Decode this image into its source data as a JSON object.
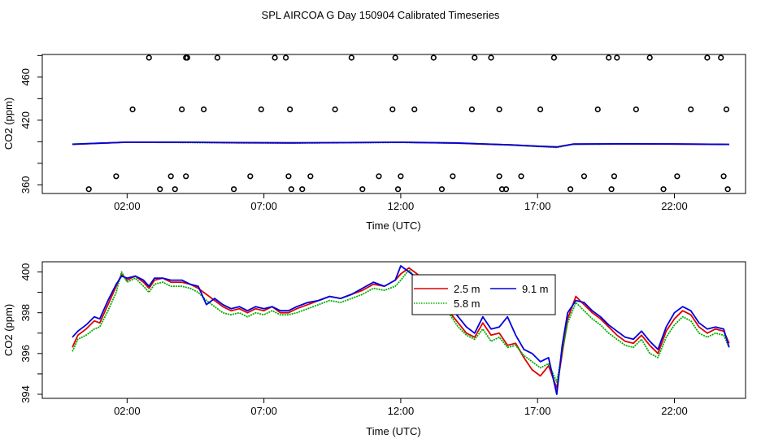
{
  "title": "SPL AIRCOA G  Day 150904  Calibrated Timeseries",
  "colors": {
    "s25": "#e00000",
    "s58": "#00b000",
    "s91": "#0000e0",
    "points": "#000000",
    "frame": "#000000"
  },
  "chart_data": [
    {
      "type": "scatter+line",
      "xlabel": "Time (UTC)",
      "ylabel": "CO2 (ppm)",
      "xlim": [
        -1.1,
        24.6
      ],
      "ylim": [
        352,
        481
      ],
      "xticks": [
        2,
        7,
        12,
        17,
        22
      ],
      "xtick_labels": [
        "02:00",
        "07:00",
        "12:00",
        "17:00",
        "22:00"
      ],
      "yticks": [
        360,
        380,
        400,
        420,
        440,
        460,
        480
      ],
      "ytick_labels": [
        "360",
        "",
        "",
        "420",
        "",
        "460",
        ""
      ],
      "cal_points": {
        "x": [
          0.6,
          1.6,
          2.2,
          2.8,
          3.2,
          3.6,
          3.75,
          4.15,
          4.0,
          4.15,
          4.2,
          4.8,
          5.3,
          5.9,
          6.5,
          6.9,
          7.4,
          7.8,
          7.9,
          7.95,
          8.0,
          8.4,
          8.7,
          9.6,
          10.2,
          10.6,
          11.2,
          11.7,
          11.8,
          11.9,
          12.0,
          12.5,
          13.2,
          13.5,
          13.9,
          14.6,
          14.7,
          15.3,
          15.6,
          15.6,
          15.7,
          15.85,
          16.4,
          17.1,
          17.6,
          18.2,
          18.7,
          19.2,
          19.6,
          19.7,
          19.8,
          19.9,
          20.6,
          21.1,
          21.6,
          22.1,
          22.6,
          23.2,
          23.7,
          23.8,
          23.9,
          23.95
        ],
        "y": [
          356,
          368,
          430,
          478,
          356,
          368,
          356,
          368,
          430,
          478,
          478,
          430,
          478,
          356,
          368,
          430,
          478,
          478,
          368,
          430,
          356,
          356,
          368,
          430,
          478,
          356,
          368,
          430,
          478,
          356,
          368,
          430,
          478,
          356,
          368,
          430,
          478,
          478,
          368,
          430,
          356,
          356,
          368,
          430,
          478,
          356,
          368,
          430,
          478,
          356,
          368,
          478,
          430,
          478,
          356,
          368,
          430,
          478,
          478,
          368,
          430,
          356
        ]
      },
      "series": [
        {
          "name": "",
          "color_key": "s58",
          "x": [
            0,
            2,
            4,
            6,
            8,
            10,
            12,
            14,
            15,
            16,
            17,
            17.7,
            18.3,
            20,
            22,
            24
          ],
          "y": [
            397.8,
            399.5,
            399.3,
            398.9,
            398.8,
            399.1,
            399.4,
            398.7,
            397.8,
            396.9,
            395.6,
            394.8,
            397.6,
            397.8,
            397.7,
            397.4
          ]
        },
        {
          "name": "",
          "color_key": "s25",
          "x": [
            0,
            2,
            4,
            6,
            8,
            10,
            12,
            14,
            15,
            16,
            17,
            17.7,
            18.3,
            20,
            22,
            24
          ],
          "y": [
            397.6,
            399.6,
            399.5,
            399.1,
            398.9,
            399.2,
            399.5,
            398.8,
            397.9,
            397.1,
            395.8,
            395.0,
            397.8,
            398.0,
            397.9,
            397.6
          ]
        },
        {
          "name": "",
          "color_key": "s91",
          "x": [
            0,
            2,
            4,
            6,
            8,
            10,
            12,
            14,
            15,
            16,
            17,
            17.7,
            18.3,
            20,
            22,
            24
          ],
          "y": [
            397.7,
            399.6,
            399.6,
            399.2,
            399.0,
            399.2,
            399.5,
            398.9,
            398.0,
            397.2,
            395.9,
            395.2,
            397.9,
            398.1,
            398.0,
            397.6
          ]
        }
      ]
    },
    {
      "type": "line",
      "xlabel": "Time (UTC)",
      "ylabel": "CO2 (ppm)",
      "xlim": [
        -1.1,
        24.6
      ],
      "ylim": [
        393.8,
        400.5
      ],
      "xticks": [
        2,
        7,
        12,
        17,
        22
      ],
      "xtick_labels": [
        "02:00",
        "07:00",
        "12:00",
        "17:00",
        "22:00"
      ],
      "yticks": [
        394,
        395,
        396,
        397,
        398,
        399,
        400
      ],
      "ytick_labels": [
        "394",
        "",
        "396",
        "",
        "398",
        "",
        "400"
      ],
      "legend": {
        "entries": [
          {
            "label": "2.5 m",
            "color_key": "s25",
            "style": "line"
          },
          {
            "label": "5.8 m",
            "color_key": "s58",
            "style": "dotted"
          },
          {
            "label": "9.1 m",
            "color_key": "s91",
            "style": "line"
          }
        ],
        "placement": "top-right"
      },
      "series": [
        {
          "name": "2.5 m",
          "color_key": "s25",
          "x": [
            0,
            0.2,
            0.5,
            0.8,
            1.0,
            1.3,
            1.6,
            1.8,
            2.0,
            2.3,
            2.6,
            2.8,
            3.0,
            3.3,
            3.6,
            4.0,
            4.3,
            4.6,
            4.9,
            5.2,
            5.5,
            5.8,
            6.1,
            6.4,
            6.7,
            7.0,
            7.3,
            7.6,
            7.9,
            8.2,
            8.6,
            9.0,
            9.4,
            9.8,
            10.2,
            10.6,
            11.0,
            11.4,
            11.8,
            12.0,
            12.3,
            12.6,
            12.9,
            13.2,
            13.5,
            13.8,
            14.1,
            14.4,
            14.7,
            15.0,
            15.3,
            15.6,
            15.9,
            16.2,
            16.5,
            16.8,
            17.1,
            17.4,
            17.7,
            17.9,
            18.1,
            18.4,
            18.7,
            19.0,
            19.3,
            19.6,
            19.9,
            20.2,
            20.5,
            20.8,
            21.1,
            21.4,
            21.7,
            22.0,
            22.3,
            22.6,
            22.9,
            23.2,
            23.5,
            23.8,
            24.0
          ],
          "y": [
            396.3,
            396.9,
            397.2,
            397.6,
            397.5,
            398.4,
            399.3,
            399.9,
            399.6,
            399.8,
            399.5,
            399.2,
            399.6,
            399.7,
            399.5,
            399.5,
            399.4,
            399.2,
            398.9,
            398.6,
            398.3,
            398.1,
            398.2,
            398.0,
            398.2,
            398.1,
            398.3,
            398.0,
            398.0,
            398.2,
            398.4,
            398.6,
            398.8,
            398.7,
            398.9,
            399.1,
            399.4,
            399.3,
            399.6,
            399.9,
            400.2,
            399.9,
            399.5,
            399.0,
            398.5,
            398.0,
            397.5,
            397.0,
            396.8,
            397.5,
            396.9,
            397.0,
            396.4,
            396.5,
            395.8,
            395.2,
            394.9,
            395.4,
            394.3,
            396.0,
            397.7,
            398.8,
            398.4,
            398.0,
            397.7,
            397.3,
            396.9,
            396.6,
            396.5,
            396.9,
            396.4,
            396.0,
            397.1,
            397.7,
            398.1,
            397.9,
            397.3,
            397.0,
            397.2,
            397.1,
            396.5
          ]
        },
        {
          "name": "5.8 m",
          "color_key": "s58",
          "x": [
            0,
            0.2,
            0.5,
            0.8,
            1.0,
            1.3,
            1.6,
            1.8,
            2.0,
            2.3,
            2.6,
            2.8,
            3.0,
            3.3,
            3.6,
            4.0,
            4.3,
            4.6,
            4.9,
            5.2,
            5.5,
            5.8,
            6.1,
            6.4,
            6.7,
            7.0,
            7.3,
            7.6,
            7.9,
            8.2,
            8.6,
            9.0,
            9.4,
            9.8,
            10.2,
            10.6,
            11.0,
            11.4,
            11.8,
            12.0,
            12.3,
            12.6,
            12.9,
            13.2,
            13.5,
            13.8,
            14.1,
            14.4,
            14.7,
            15.0,
            15.3,
            15.6,
            15.9,
            16.2,
            16.5,
            16.8,
            17.1,
            17.4,
            17.7,
            17.9,
            18.1,
            18.4,
            18.7,
            19.0,
            19.3,
            19.6,
            19.9,
            20.2,
            20.5,
            20.8,
            21.1,
            21.4,
            21.7,
            22.0,
            22.3,
            22.6,
            22.9,
            23.2,
            23.5,
            23.8,
            24.0
          ],
          "y": [
            396.1,
            396.7,
            396.9,
            397.2,
            397.3,
            398.1,
            399.0,
            400.0,
            399.5,
            399.7,
            399.3,
            399.0,
            399.4,
            399.5,
            399.3,
            399.3,
            399.2,
            399.0,
            398.6,
            398.3,
            398.0,
            397.9,
            398.0,
            397.8,
            398.0,
            397.9,
            398.1,
            397.9,
            397.9,
            398.0,
            398.2,
            398.4,
            398.6,
            398.5,
            398.7,
            398.9,
            399.2,
            399.1,
            399.3,
            399.6,
            400.1,
            399.6,
            399.2,
            398.8,
            398.3,
            397.9,
            397.3,
            396.9,
            396.7,
            397.2,
            396.6,
            396.8,
            396.3,
            396.4,
            395.9,
            395.6,
            395.3,
            395.5,
            394.6,
            396.1,
            397.5,
            398.5,
            398.1,
            397.7,
            397.4,
            397.0,
            396.7,
            396.4,
            396.3,
            396.7,
            396.0,
            395.8,
            396.8,
            397.4,
            397.8,
            397.6,
            397.0,
            396.8,
            397.0,
            396.9,
            396.3
          ]
        },
        {
          "name": "9.1 m",
          "color_key": "s91",
          "x": [
            0,
            0.2,
            0.5,
            0.8,
            1.0,
            1.3,
            1.6,
            1.8,
            2.0,
            2.3,
            2.6,
            2.8,
            3.0,
            3.3,
            3.6,
            4.0,
            4.3,
            4.6,
            4.9,
            5.2,
            5.5,
            5.8,
            6.1,
            6.4,
            6.7,
            7.0,
            7.3,
            7.6,
            7.9,
            8.2,
            8.6,
            9.0,
            9.4,
            9.8,
            10.2,
            10.6,
            11.0,
            11.4,
            11.8,
            12.0,
            12.3,
            12.6,
            12.9,
            13.2,
            13.5,
            13.8,
            14.1,
            14.4,
            14.7,
            15.0,
            15.3,
            15.6,
            15.9,
            16.2,
            16.5,
            16.8,
            17.1,
            17.4,
            17.7,
            17.9,
            18.1,
            18.4,
            18.7,
            19.0,
            19.3,
            19.6,
            19.9,
            20.2,
            20.5,
            20.8,
            21.1,
            21.4,
            21.7,
            22.0,
            22.3,
            22.6,
            22.9,
            23.2,
            23.5,
            23.8,
            24.0
          ],
          "y": [
            396.8,
            397.1,
            397.4,
            397.8,
            397.7,
            398.6,
            399.4,
            399.8,
            399.7,
            399.8,
            399.6,
            399.3,
            399.7,
            399.7,
            399.6,
            399.6,
            399.4,
            399.3,
            398.4,
            398.7,
            398.4,
            398.2,
            398.3,
            398.1,
            398.3,
            398.2,
            398.3,
            398.1,
            398.1,
            398.3,
            398.5,
            398.6,
            398.8,
            398.7,
            398.9,
            399.2,
            399.5,
            399.3,
            399.6,
            400.3,
            400.0,
            399.7,
            399.6,
            399.3,
            398.8,
            398.3,
            397.8,
            397.3,
            397.0,
            397.8,
            397.2,
            397.3,
            397.8,
            396.9,
            396.2,
            396.0,
            395.6,
            395.8,
            394.0,
            396.4,
            398.0,
            398.6,
            398.5,
            398.1,
            397.8,
            397.4,
            397.1,
            396.8,
            396.7,
            397.1,
            396.6,
            396.2,
            397.3,
            398.0,
            398.3,
            398.1,
            397.5,
            397.2,
            397.3,
            397.2,
            396.3
          ]
        }
      ]
    }
  ]
}
